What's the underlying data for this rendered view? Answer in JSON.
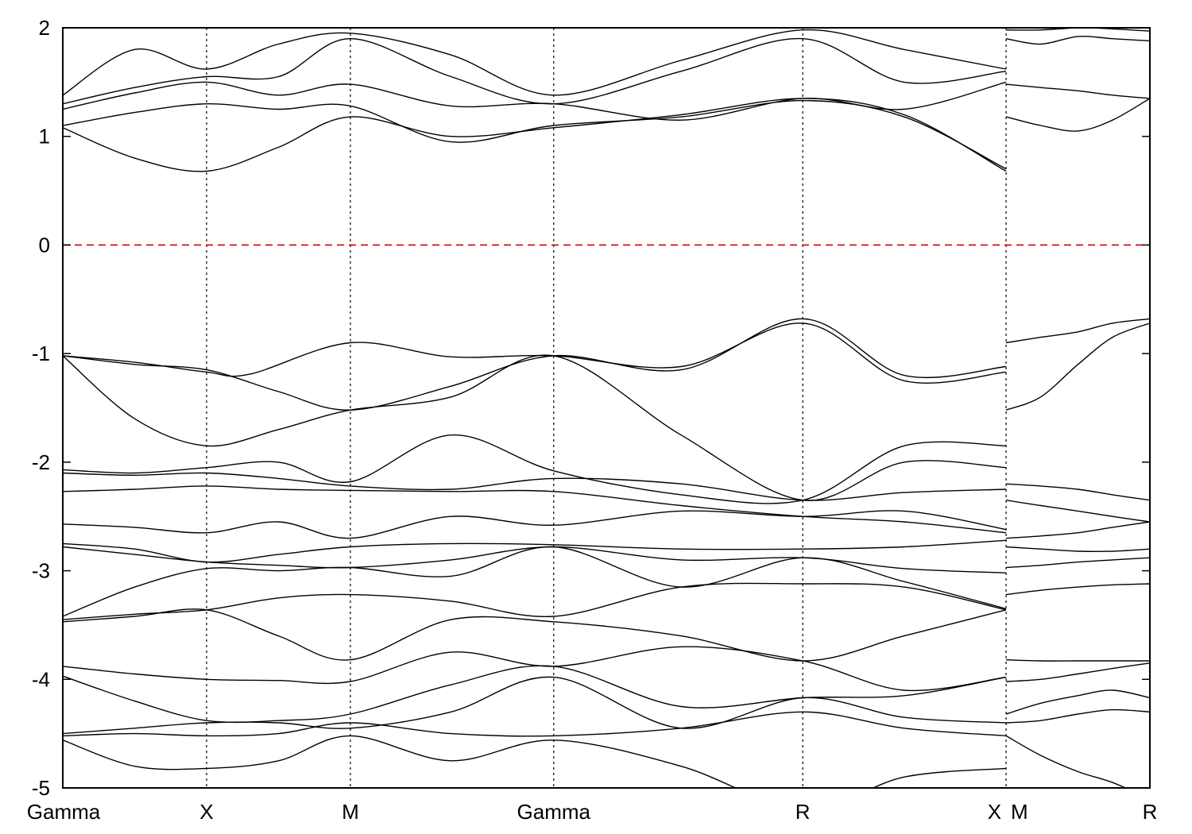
{
  "chart_data": {
    "type": "line",
    "title": "",
    "xlabel": "",
    "ylabel": "",
    "ylim": [
      -5,
      2
    ],
    "y_ticks": [
      -5,
      -4,
      -3,
      -2,
      -1,
      0,
      1,
      2
    ],
    "y_tick_labels": [
      "-5",
      "-4",
      "-3",
      "-2",
      "-1",
      "0",
      "1",
      "2"
    ],
    "k_path": {
      "segment_lengths": [
        1,
        1,
        1.414,
        1.732,
        1.414,
        0,
        1
      ],
      "labels": [
        "Gamma",
        "X",
        "M",
        "Gamma",
        "R",
        "X",
        "M",
        "R"
      ],
      "label_positions": [
        0,
        1,
        2,
        3.414,
        5.146,
        6.56,
        6.56,
        7.56
      ],
      "discontinuity": "X|M at 6.560"
    },
    "grid": "vertical dashed lines at high-symmetry points",
    "legend": "none",
    "reference_line": {
      "y": 0,
      "style": "dashed",
      "color": "#d00000"
    },
    "series_color": "#000000",
    "series": [
      {
        "x": [
          0,
          0.5,
          1,
          1.5,
          2,
          2.7,
          3.414,
          4.3,
          5.146,
          5.85,
          6.56
        ],
        "y": [
          -1.02,
          -1.6,
          -1.85,
          -1.7,
          -1.52,
          -1.4,
          -1.02,
          -1.75,
          -2.35,
          -2.0,
          -2.05
        ]
      },
      {
        "x": [
          0,
          0.5,
          1,
          1.5,
          2,
          2.7,
          3.414,
          4.3,
          5.146,
          5.85,
          6.56
        ],
        "y": [
          -1.02,
          -1.1,
          -1.15,
          -1.35,
          -1.52,
          -1.3,
          -1.02,
          -1.15,
          -0.68,
          -1.2,
          -1.12
        ]
      },
      {
        "x": [
          0,
          0.5,
          1,
          1.3,
          2,
          2.7,
          3.414,
          4.3,
          5.146,
          5.85,
          6.56
        ],
        "y": [
          -1.02,
          -1.08,
          -1.17,
          -1.19,
          -0.9,
          -1.03,
          -1.02,
          -1.12,
          -0.72,
          -1.25,
          -1.17
        ]
      },
      {
        "x": [
          0,
          0.5,
          1,
          1.5,
          2,
          2.7,
          3.414,
          4.3,
          5.146,
          5.85,
          6.56
        ],
        "y": [
          -2.07,
          -2.1,
          -2.05,
          -2.0,
          -2.18,
          -1.75,
          -2.08,
          -2.3,
          -2.35,
          -1.85,
          -1.85
        ]
      },
      {
        "x": [
          0,
          0.5,
          1,
          1.5,
          2,
          2.7,
          3.414,
          4.3,
          5.146,
          5.85,
          6.56
        ],
        "y": [
          -2.1,
          -2.12,
          -2.1,
          -2.15,
          -2.22,
          -2.25,
          -2.15,
          -2.2,
          -2.35,
          -2.28,
          -2.25
        ]
      },
      {
        "x": [
          0,
          0.5,
          1,
          1.5,
          2,
          2.7,
          3.414,
          4.3,
          5.146,
          5.85,
          6.56
        ],
        "y": [
          -2.27,
          -2.25,
          -2.22,
          -2.25,
          -2.26,
          -2.27,
          -2.27,
          -2.4,
          -2.5,
          -2.55,
          -2.65
        ]
      },
      {
        "x": [
          0,
          0.5,
          1,
          1.5,
          2,
          2.7,
          3.414,
          4.3,
          5.146,
          5.85,
          6.56
        ],
        "y": [
          -2.57,
          -2.6,
          -2.65,
          -2.55,
          -2.7,
          -2.5,
          -2.58,
          -2.45,
          -2.5,
          -2.45,
          -2.62
        ]
      },
      {
        "x": [
          0,
          0.5,
          1,
          1.5,
          2,
          2.7,
          3.414,
          4.3,
          5.146,
          5.85,
          6.56
        ],
        "y": [
          -2.75,
          -2.8,
          -2.92,
          -2.85,
          -2.78,
          -2.75,
          -2.76,
          -2.8,
          -2.8,
          -2.78,
          -2.72
        ]
      },
      {
        "x": [
          0,
          0.5,
          1,
          1.5,
          2,
          2.7,
          3.414,
          4.3,
          5.146,
          5.85,
          6.56
        ],
        "y": [
          -2.78,
          -2.85,
          -2.92,
          -2.95,
          -2.97,
          -2.9,
          -2.78,
          -2.9,
          -2.88,
          -2.98,
          -3.02
        ]
      },
      {
        "x": [
          0,
          0.5,
          1,
          1.5,
          2,
          2.7,
          3.414,
          4.3,
          5.146,
          5.85,
          6.56
        ],
        "y": [
          -3.42,
          -3.15,
          -2.98,
          -3.0,
          -2.97,
          -3.05,
          -2.78,
          -3.15,
          -2.88,
          -3.1,
          -3.35
        ]
      },
      {
        "x": [
          0,
          0.5,
          1,
          1.5,
          2,
          2.7,
          3.414,
          4.3,
          5.146,
          5.85,
          6.56
        ],
        "y": [
          -3.45,
          -3.4,
          -3.36,
          -3.25,
          -3.22,
          -3.28,
          -3.42,
          -3.15,
          -3.12,
          -3.15,
          -3.36
        ]
      },
      {
        "x": [
          0,
          0.5,
          1,
          1.5,
          2,
          2.7,
          3.414,
          4.3,
          5.146,
          5.85,
          6.56
        ],
        "y": [
          -3.47,
          -3.42,
          -3.36,
          -3.6,
          -3.82,
          -3.45,
          -3.47,
          -3.6,
          -3.83,
          -3.6,
          -3.36
        ]
      },
      {
        "x": [
          0,
          0.5,
          1,
          1.5,
          2,
          2.7,
          3.414,
          4.3,
          5.146,
          5.85,
          6.56
        ],
        "y": [
          -3.88,
          -3.95,
          -4.0,
          -4.01,
          -4.02,
          -3.75,
          -3.88,
          -3.7,
          -3.83,
          -4.1,
          -3.98
        ]
      },
      {
        "x": [
          0,
          0.5,
          1,
          1.5,
          2,
          2.7,
          3.414,
          4.3,
          5.146,
          5.85,
          6.56
        ],
        "y": [
          -3.97,
          -4.2,
          -4.38,
          -4.38,
          -4.32,
          -4.05,
          -3.88,
          -4.25,
          -4.17,
          -4.15,
          -3.98
        ]
      },
      {
        "x": [
          0,
          0.5,
          1,
          1.5,
          2,
          2.7,
          3.414,
          4.3,
          5.146,
          5.85,
          6.56
        ],
        "y": [
          -4.5,
          -4.45,
          -4.4,
          -4.4,
          -4.45,
          -4.3,
          -3.98,
          -4.45,
          -4.17,
          -4.35,
          -4.4
        ]
      },
      {
        "x": [
          0,
          0.5,
          1,
          1.5,
          2,
          2.7,
          3.414,
          4.3,
          5.146,
          5.85,
          6.56
        ],
        "y": [
          -4.52,
          -4.5,
          -4.52,
          -4.5,
          -4.4,
          -4.5,
          -4.52,
          -4.45,
          -4.3,
          -4.45,
          -4.52
        ]
      },
      {
        "x": [
          0,
          0.5,
          1,
          1.5,
          2,
          2.7,
          3.414,
          4.3,
          5.146,
          5.85,
          6.56
        ],
        "y": [
          -4.56,
          -4.8,
          -4.82,
          -4.75,
          -4.52,
          -4.75,
          -4.56,
          -4.8,
          -5.2,
          -4.9,
          -4.82
        ]
      },
      {
        "x": [
          0,
          0.5,
          1,
          1.5,
          2,
          2.7,
          3.414,
          4.3,
          5.146,
          5.85,
          6.56
        ],
        "y": [
          1.08,
          0.8,
          0.68,
          0.9,
          1.18,
          1.0,
          1.08,
          1.2,
          1.35,
          1.2,
          0.68
        ]
      },
      {
        "x": [
          0,
          0.5,
          1,
          1.5,
          2,
          2.7,
          3.414,
          4.3,
          5.146,
          5.85,
          6.56
        ],
        "y": [
          1.1,
          1.22,
          1.3,
          1.25,
          1.28,
          0.95,
          1.1,
          1.18,
          1.33,
          1.18,
          0.7
        ]
      },
      {
        "x": [
          0,
          0.5,
          1,
          1.5,
          2,
          2.7,
          3.414,
          4.3,
          5.146,
          5.85,
          6.56
        ],
        "y": [
          1.25,
          1.4,
          1.5,
          1.38,
          1.48,
          1.28,
          1.3,
          1.15,
          1.35,
          1.25,
          1.5
        ]
      },
      {
        "x": [
          0,
          0.5,
          1,
          1.5,
          2,
          2.7,
          3.414,
          4.3,
          5.146,
          5.85,
          6.56
        ],
        "y": [
          1.3,
          1.45,
          1.55,
          1.55,
          1.9,
          1.55,
          1.3,
          1.6,
          1.9,
          1.5,
          1.6
        ]
      },
      {
        "x": [
          0,
          0.5,
          1,
          1.5,
          2,
          2.7,
          3.414,
          4.3,
          5.146,
          5.85,
          6.56
        ],
        "y": [
          1.38,
          1.8,
          1.62,
          1.85,
          1.95,
          1.75,
          1.38,
          1.7,
          1.98,
          1.8,
          1.62
        ]
      },
      {
        "x": [
          6.56,
          6.8,
          7.06,
          7.3,
          7.56
        ],
        "y": [
          -0.9,
          -0.85,
          -0.8,
          -0.72,
          -0.68
        ]
      },
      {
        "x": [
          6.56,
          6.8,
          7.06,
          7.3,
          7.56
        ],
        "y": [
          -1.52,
          -1.4,
          -1.1,
          -0.85,
          -0.72
        ]
      },
      {
        "x": [
          6.56,
          6.8,
          7.06,
          7.3,
          7.56
        ],
        "y": [
          -2.2,
          -2.22,
          -2.25,
          -2.3,
          -2.35
        ]
      },
      {
        "x": [
          6.56,
          6.8,
          7.06,
          7.3,
          7.56
        ],
        "y": [
          -2.35,
          -2.4,
          -2.45,
          -2.5,
          -2.55
        ]
      },
      {
        "x": [
          6.56,
          6.8,
          7.06,
          7.3,
          7.56
        ],
        "y": [
          -2.7,
          -2.68,
          -2.65,
          -2.6,
          -2.55
        ]
      },
      {
        "x": [
          6.56,
          6.8,
          7.06,
          7.3,
          7.56
        ],
        "y": [
          -2.78,
          -2.8,
          -2.82,
          -2.82,
          -2.8
        ]
      },
      {
        "x": [
          6.56,
          6.8,
          7.06,
          7.3,
          7.56
        ],
        "y": [
          -2.97,
          -2.95,
          -2.92,
          -2.9,
          -2.88
        ]
      },
      {
        "x": [
          6.56,
          6.8,
          7.06,
          7.3,
          7.56
        ],
        "y": [
          -3.22,
          -3.18,
          -3.15,
          -3.13,
          -3.12
        ]
      },
      {
        "x": [
          6.56,
          6.8,
          7.06,
          7.3,
          7.56
        ],
        "y": [
          -3.82,
          -3.83,
          -3.83,
          -3.83,
          -3.83
        ]
      },
      {
        "x": [
          6.56,
          6.8,
          7.06,
          7.3,
          7.56
        ],
        "y": [
          -4.02,
          -4.0,
          -3.95,
          -3.9,
          -3.85
        ]
      },
      {
        "x": [
          6.56,
          6.8,
          7.06,
          7.3,
          7.56
        ],
        "y": [
          -4.32,
          -4.22,
          -4.15,
          -4.1,
          -4.17
        ]
      },
      {
        "x": [
          6.56,
          6.8,
          7.06,
          7.3,
          7.56
        ],
        "y": [
          -4.4,
          -4.38,
          -4.32,
          -4.28,
          -4.3
        ]
      },
      {
        "x": [
          6.56,
          6.8,
          7.06,
          7.3,
          7.56
        ],
        "y": [
          -4.52,
          -4.7,
          -4.85,
          -4.95,
          -5.1
        ]
      },
      {
        "x": [
          6.56,
          6.8,
          7.06,
          7.3,
          7.56
        ],
        "y": [
          1.18,
          1.1,
          1.05,
          1.15,
          1.35
        ]
      },
      {
        "x": [
          6.56,
          6.8,
          7.06,
          7.3,
          7.56
        ],
        "y": [
          1.48,
          1.45,
          1.42,
          1.38,
          1.35
        ]
      },
      {
        "x": [
          6.56,
          6.8,
          7.06,
          7.3,
          7.56
        ],
        "y": [
          1.9,
          1.85,
          1.92,
          1.9,
          1.88
        ]
      },
      {
        "x": [
          6.56,
          6.8,
          7.06,
          7.3,
          7.56
        ],
        "y": [
          1.98,
          1.98,
          2.0,
          1.99,
          1.97
        ]
      }
    ]
  }
}
